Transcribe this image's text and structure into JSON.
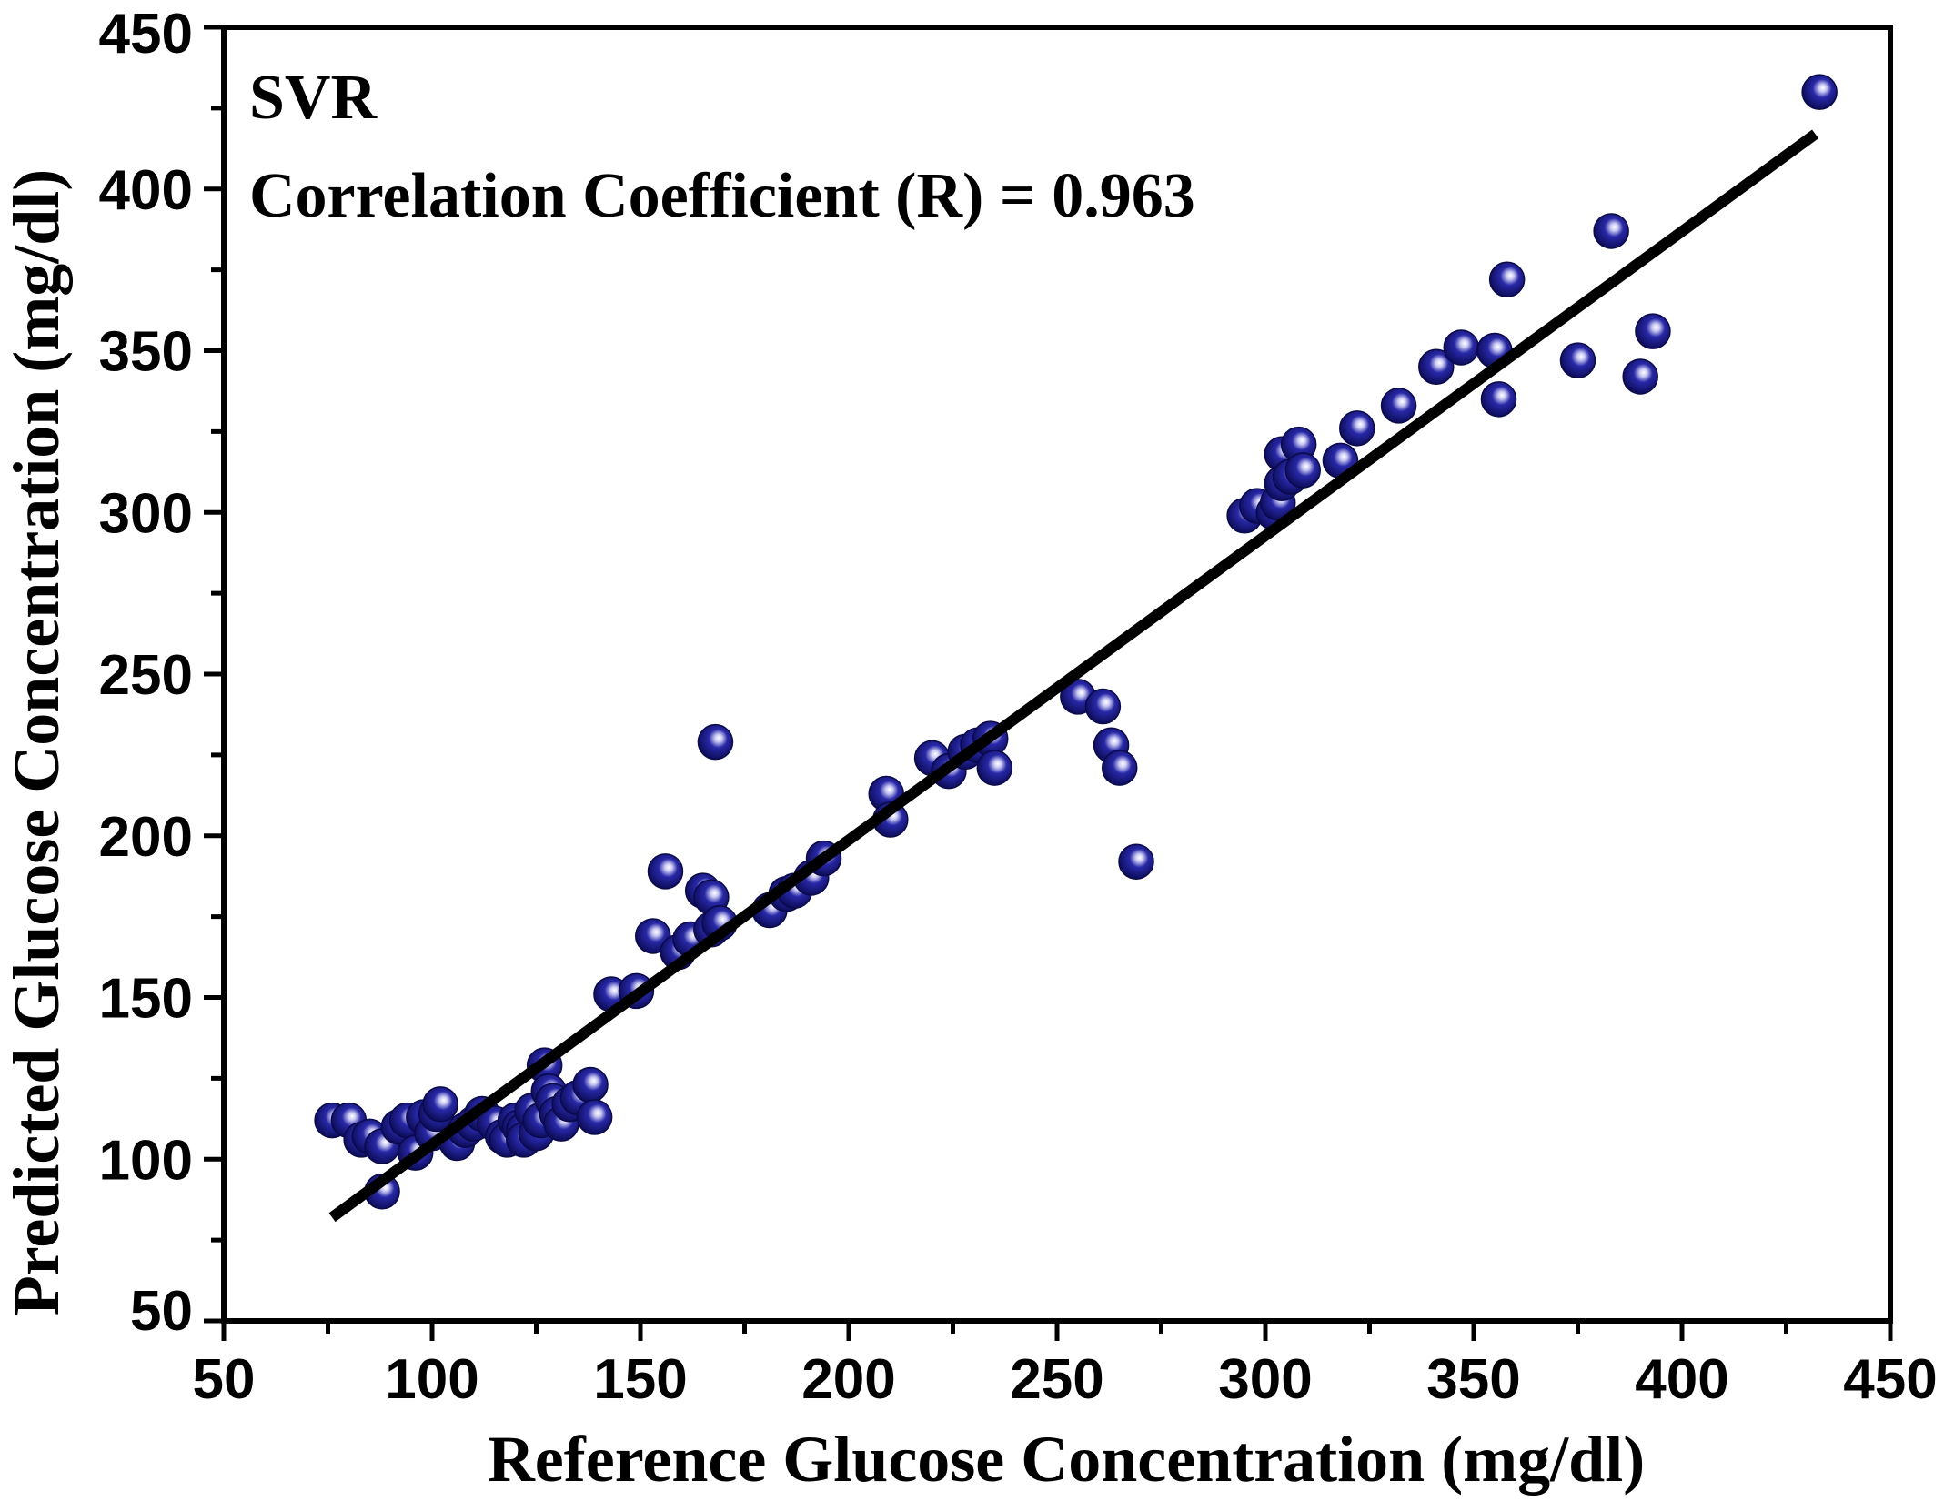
{
  "chart_data": {
    "type": "scatter",
    "title": "",
    "xlabel": "Reference Glucose Concentration (mg/dl)",
    "ylabel": "Predicted Glucose Concentration (mg/dl)",
    "xlim": [
      50,
      450
    ],
    "ylim": [
      50,
      450
    ],
    "x_ticks": [
      "50",
      "100",
      "150",
      "200",
      "250",
      "300",
      "350",
      "400",
      "450"
    ],
    "y_ticks": [
      "50",
      "100",
      "150",
      "200",
      "250",
      "300",
      "350",
      "400",
      "450"
    ],
    "annotations": [
      "SVR",
      "Correlation Coefficient (R) = 0.963"
    ],
    "grid": false,
    "marker_color": "#1a1a8c",
    "fit_line_color": "#000000",
    "fit_line": {
      "x": [
        76,
        432
      ],
      "y": [
        82,
        417
      ]
    },
    "points": [
      [
        76,
        112
      ],
      [
        80,
        112
      ],
      [
        83,
        106
      ],
      [
        85,
        107
      ],
      [
        88,
        104
      ],
      [
        88,
        90
      ],
      [
        92,
        110
      ],
      [
        94,
        112
      ],
      [
        96,
        102
      ],
      [
        98,
        113
      ],
      [
        100,
        108
      ],
      [
        101,
        114
      ],
      [
        102,
        117
      ],
      [
        106,
        105
      ],
      [
        108,
        109
      ],
      [
        110,
        111
      ],
      [
        112,
        114
      ],
      [
        115,
        111
      ],
      [
        117,
        107
      ],
      [
        118,
        106
      ],
      [
        120,
        112
      ],
      [
        121,
        110
      ],
      [
        122,
        109
      ],
      [
        122,
        106
      ],
      [
        124,
        115
      ],
      [
        125,
        108
      ],
      [
        126,
        112
      ],
      [
        127,
        129
      ],
      [
        128,
        121
      ],
      [
        129,
        118
      ],
      [
        130,
        114
      ],
      [
        131,
        111
      ],
      [
        133,
        117
      ],
      [
        135,
        119
      ],
      [
        138,
        123
      ],
      [
        139,
        113
      ],
      [
        143,
        151
      ],
      [
        149,
        152
      ],
      [
        153,
        169
      ],
      [
        156,
        189
      ],
      [
        159,
        164
      ],
      [
        162,
        168
      ],
      [
        165,
        183
      ],
      [
        167,
        171
      ],
      [
        167,
        181
      ],
      [
        168,
        229
      ],
      [
        169,
        173
      ],
      [
        181,
        177
      ],
      [
        185,
        182
      ],
      [
        187,
        183
      ],
      [
        191,
        187
      ],
      [
        194,
        193
      ],
      [
        209,
        213
      ],
      [
        210,
        205
      ],
      [
        220,
        224
      ],
      [
        224,
        220
      ],
      [
        228,
        226
      ],
      [
        231,
        228
      ],
      [
        234,
        230
      ],
      [
        235,
        221
      ],
      [
        255,
        243
      ],
      [
        261,
        240
      ],
      [
        263,
        228
      ],
      [
        265,
        221
      ],
      [
        269,
        192
      ],
      [
        295,
        299
      ],
      [
        298,
        302
      ],
      [
        302,
        300
      ],
      [
        303,
        303
      ],
      [
        304,
        309
      ],
      [
        304,
        318
      ],
      [
        306,
        311
      ],
      [
        308,
        321
      ],
      [
        309,
        313
      ],
      [
        318,
        316
      ],
      [
        322,
        326
      ],
      [
        332,
        333
      ],
      [
        341,
        345
      ],
      [
        347,
        351
      ],
      [
        355,
        350
      ],
      [
        356,
        335
      ],
      [
        358,
        372
      ],
      [
        375,
        347
      ],
      [
        383,
        387
      ],
      [
        390,
        342
      ],
      [
        393,
        356
      ],
      [
        433,
        430
      ]
    ]
  }
}
